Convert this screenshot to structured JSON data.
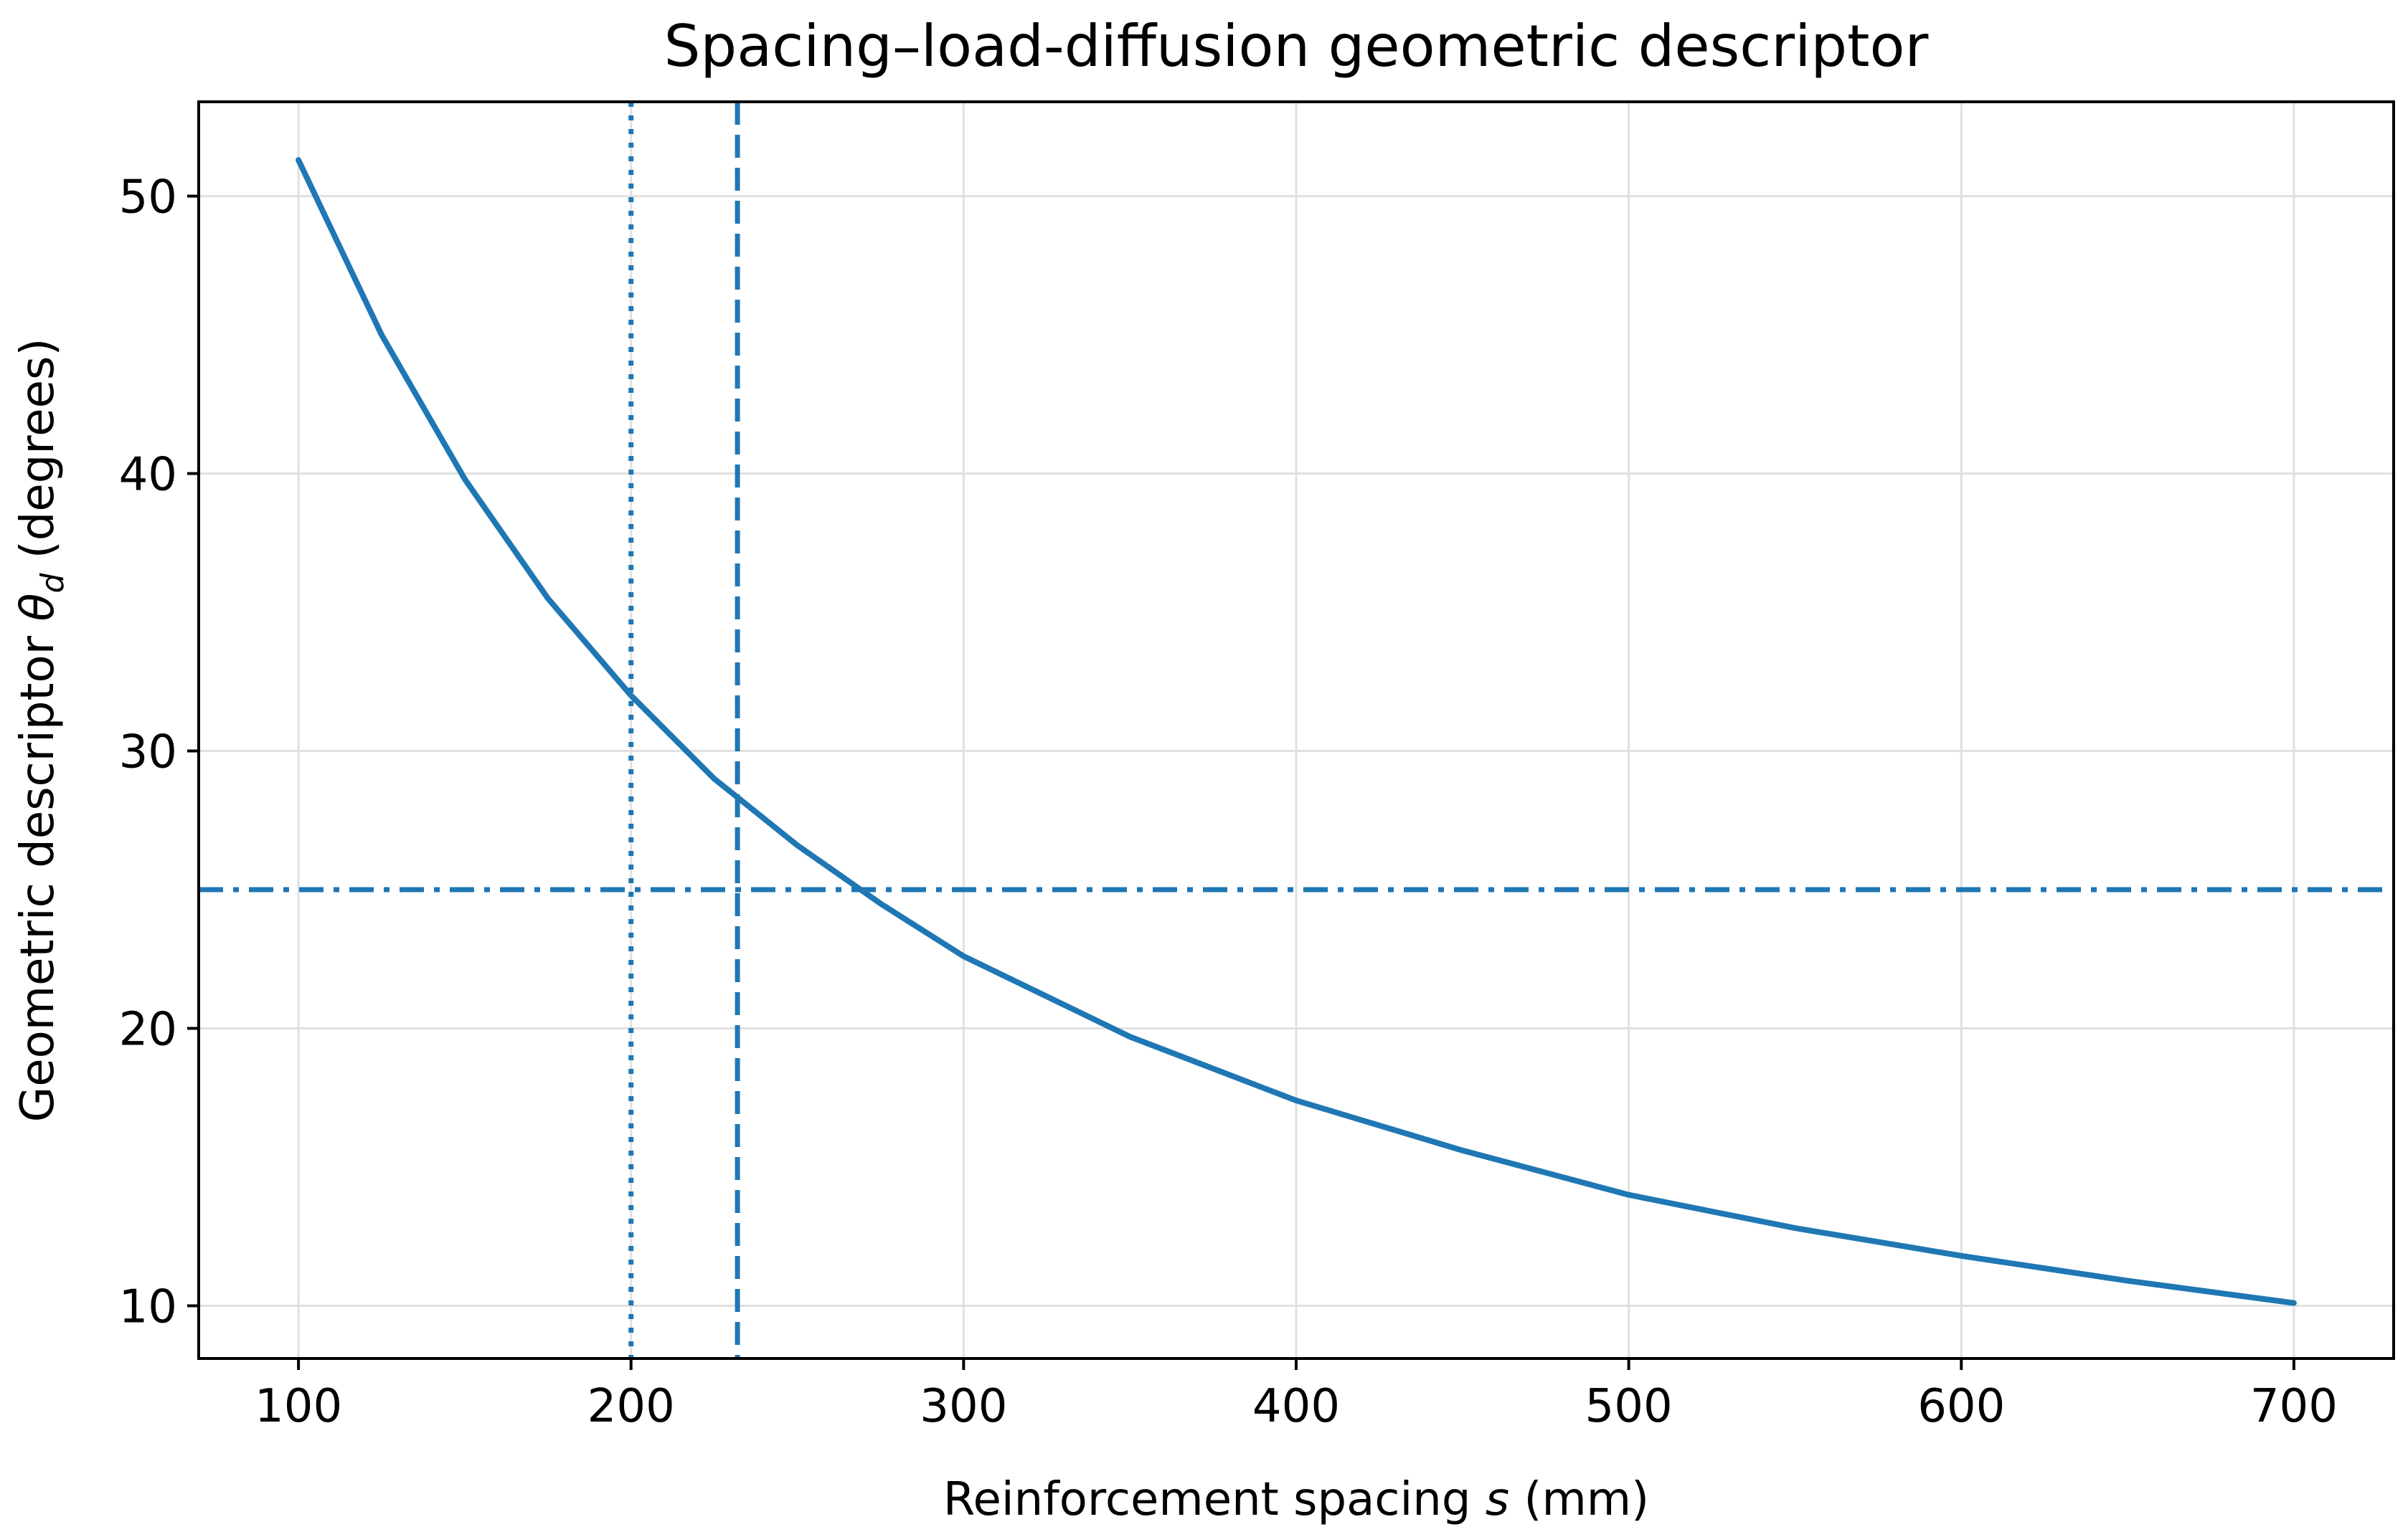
{
  "chart_data": {
    "type": "line",
    "title": "Spacing–load-diffusion geometric descriptor",
    "xlabel_prefix": "Reinforcement spacing ",
    "xlabel_var": "s",
    "xlabel_suffix": " (mm)",
    "ylabel_prefix": "Geometric descriptor ",
    "ylabel_var": "θ",
    "ylabel_sub": "d",
    "ylabel_suffix": " (degrees)",
    "xlim": [
      70,
      730
    ],
    "ylim": [
      8.1,
      53.4
    ],
    "xticks": [
      100,
      200,
      300,
      400,
      500,
      600,
      700
    ],
    "xtick_labels": [
      "100",
      "200",
      "300",
      "400",
      "500",
      "600",
      "700"
    ],
    "yticks": [
      10,
      20,
      30,
      40,
      50
    ],
    "ytick_labels": [
      "10",
      "20",
      "30",
      "40",
      "50"
    ],
    "grid": true,
    "color": "#1f77b4",
    "series": [
      {
        "x": [
          100,
          125,
          150,
          175,
          200,
          225,
          250,
          275,
          300,
          350,
          400,
          450,
          500,
          550,
          600,
          650,
          700
        ],
        "y": [
          51.3,
          45.0,
          39.8,
          35.5,
          32.0,
          29.0,
          26.6,
          24.5,
          22.6,
          19.7,
          17.4,
          15.6,
          14.0,
          12.8,
          11.8,
          10.9,
          10.1
        ]
      }
    ],
    "reference_lines": [
      {
        "orientation": "vertical",
        "x": 200,
        "style": "dotted"
      },
      {
        "orientation": "vertical",
        "x": 232,
        "style": "dashed"
      },
      {
        "orientation": "horizontal",
        "y": 25,
        "style": "dashdot"
      }
    ]
  }
}
